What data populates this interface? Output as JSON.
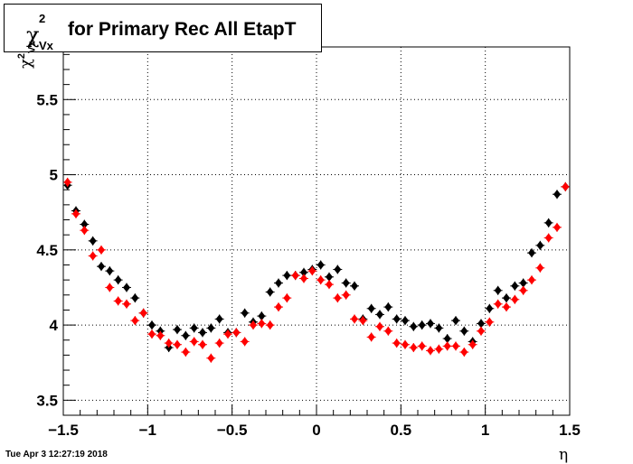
{
  "title": {
    "symbol": "χ",
    "superscript": "2",
    "subscript": "Vx",
    "text": "for Primary Rec All EtapT"
  },
  "timestamp": "Tue Apr  3 12:27:19 2018",
  "colors": {
    "series_black": "#000000",
    "series_red": "#ff0000",
    "grid": "#000000"
  },
  "chart_data": {
    "type": "scatter",
    "title": "χ²_Vx for Primary Rec All EtapT",
    "xlabel": "η",
    "ylabel": "χ²_Vx",
    "xlim": [
      -1.5,
      1.5
    ],
    "ylim": [
      3.4,
      5.85
    ],
    "xticks": [
      -1.5,
      -1,
      -0.5,
      0,
      0.5,
      1,
      1.5
    ],
    "xtick_labels": [
      "−1.5",
      "−1",
      "−0.5",
      "0",
      "0.5",
      "1",
      "1.5"
    ],
    "yticks": [
      3.5,
      4,
      4.5,
      5,
      5.5
    ],
    "ytick_labels": [
      "3.5",
      "4",
      "4.5",
      "5",
      "5.5"
    ],
    "grid": true,
    "y_error": 0.03,
    "x": [
      -1.475,
      -1.425,
      -1.375,
      -1.325,
      -1.275,
      -1.225,
      -1.175,
      -1.125,
      -1.075,
      -1.025,
      -0.975,
      -0.925,
      -0.875,
      -0.825,
      -0.775,
      -0.725,
      -0.675,
      -0.625,
      -0.575,
      -0.525,
      -0.475,
      -0.425,
      -0.375,
      -0.325,
      -0.275,
      -0.225,
      -0.175,
      -0.125,
      -0.075,
      -0.025,
      0.025,
      0.075,
      0.125,
      0.175,
      0.225,
      0.275,
      0.325,
      0.375,
      0.425,
      0.475,
      0.525,
      0.575,
      0.625,
      0.675,
      0.725,
      0.775,
      0.825,
      0.875,
      0.925,
      0.975,
      1.025,
      1.075,
      1.125,
      1.175,
      1.225,
      1.275,
      1.325,
      1.375,
      1.425,
      1.475
    ],
    "series": [
      {
        "color": "#000000",
        "values": [
          4.93,
          4.76,
          4.67,
          4.56,
          4.39,
          4.36,
          4.3,
          4.25,
          4.18,
          4.08,
          4.0,
          3.96,
          3.85,
          3.97,
          3.93,
          3.98,
          3.95,
          3.98,
          4.04,
          3.95,
          3.95,
          4.08,
          4.02,
          4.06,
          4.22,
          4.28,
          4.33,
          4.33,
          4.35,
          4.37,
          4.4,
          4.32,
          4.37,
          4.28,
          4.26,
          4.04,
          4.11,
          4.07,
          4.12,
          4.04,
          4.03,
          3.99,
          4.0,
          4.01,
          3.98,
          3.91,
          4.03,
          3.96,
          3.89,
          4.01,
          4.11,
          4.23,
          4.18,
          4.26,
          4.28,
          4.48,
          4.53,
          4.68,
          4.87,
          4.92
        ]
      },
      {
        "color": "#ff0000",
        "values": [
          4.95,
          4.74,
          4.63,
          4.46,
          4.5,
          4.25,
          4.16,
          4.14,
          4.03,
          4.08,
          3.94,
          3.93,
          3.88,
          3.87,
          3.82,
          3.89,
          3.87,
          3.78,
          3.88,
          3.94,
          3.95,
          3.89,
          4.0,
          4.01,
          4.0,
          4.12,
          4.18,
          4.33,
          4.31,
          4.36,
          4.3,
          4.27,
          4.18,
          4.2,
          4.04,
          4.03,
          3.92,
          3.99,
          3.96,
          3.88,
          3.87,
          3.85,
          3.86,
          3.83,
          3.84,
          3.86,
          3.86,
          3.82,
          3.87,
          3.96,
          4.02,
          4.14,
          4.12,
          4.17,
          4.23,
          4.3,
          4.38,
          4.58,
          4.65,
          4.92
        ]
      }
    ]
  }
}
